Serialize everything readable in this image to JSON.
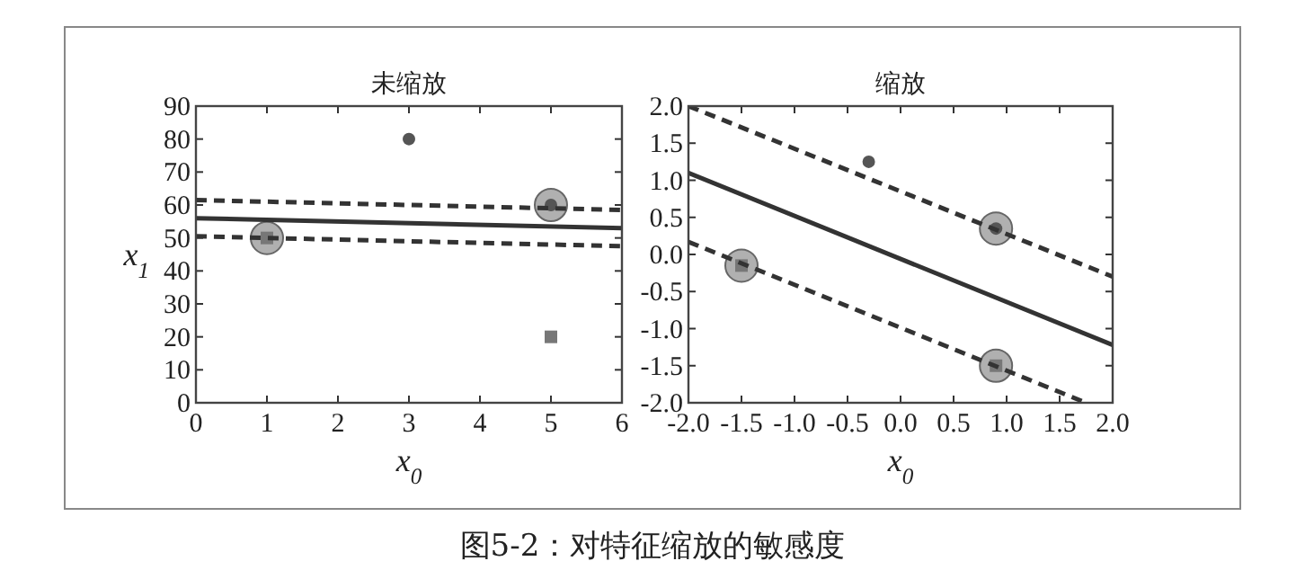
{
  "chart_data": [
    {
      "type": "scatter",
      "title": "未缩放",
      "xlabel": "x$_{0}$",
      "ylabel": "x$_{1}$",
      "xlim": [
        0,
        6
      ],
      "ylim": [
        0,
        90
      ],
      "xticks": [
        0,
        1,
        2,
        3,
        4,
        5,
        6
      ],
      "yticks": [
        0,
        10,
        20,
        30,
        40,
        50,
        60,
        70,
        80,
        90
      ],
      "annotations": [
        "图5-2：对特征缩放的敏感度"
      ],
      "series": [
        {
          "type": "bubble",
          "color": "#b0b0b0",
          "x": [
            1,
            5
          ],
          "values": [
            50,
            60
          ],
          "sizes": [
            1,
            1
          ]
        },
        {
          "marker": "circle",
          "color": "#555555",
          "x": [
            3,
            5
          ],
          "values": [
            80,
            60
          ]
        },
        {
          "marker": "square",
          "color": "#777777",
          "x": [
            1,
            5
          ],
          "values": [
            50,
            20
          ]
        },
        {
          "type": "line",
          "line_style": "solid",
          "color": "#333333",
          "x": [
            0,
            6
          ],
          "values": [
            56,
            53
          ]
        },
        {
          "type": "line",
          "line_style": "dashed",
          "color": "#333333",
          "x": [
            0,
            6
          ],
          "values": [
            61.5,
            58.5
          ]
        },
        {
          "type": "line",
          "line_style": "dashed",
          "color": "#333333",
          "x": [
            0,
            6
          ],
          "values": [
            50.5,
            47.5
          ]
        }
      ]
    },
    {
      "type": "scatter",
      "title": "缩放",
      "xlabel": "x$_{0}$",
      "xlim": [
        -2,
        2
      ],
      "ylim": [
        -2,
        2
      ],
      "xticks": [
        {
          "value": -2,
          "label": "-2.0"
        },
        {
          "value": -1.5,
          "label": "-1.5"
        },
        {
          "value": -1,
          "label": "-1.0"
        },
        {
          "value": -0.5,
          "label": "-0.5"
        },
        {
          "value": 0,
          "label": "0.0"
        },
        {
          "value": 0.5,
          "label": "0.5"
        },
        {
          "value": 1,
          "label": "1.0"
        },
        {
          "value": 1.5,
          "label": "1.5"
        },
        {
          "value": 2,
          "label": "2.0"
        }
      ],
      "yticks": [
        {
          "value": -2,
          "label": "-2.0"
        },
        {
          "value": -1.5,
          "label": "-1.5"
        },
        {
          "value": -1,
          "label": "-1.0"
        },
        {
          "value": -0.5,
          "label": "-0.5"
        },
        {
          "value": 0,
          "label": "0.0"
        },
        {
          "value": 0.5,
          "label": "0.5"
        },
        {
          "value": 1,
          "label": "1.0"
        },
        {
          "value": 1.5,
          "label": "1.5"
        },
        {
          "value": 2,
          "label": "2.0"
        }
      ],
      "series": [
        {
          "type": "bubble",
          "color": "#b0b0b0",
          "x": [
            -1.5,
            0.9,
            0.9
          ],
          "values": [
            -0.15,
            0.35,
            -1.5
          ],
          "sizes": [
            1,
            1,
            1
          ]
        },
        {
          "marker": "circle",
          "color": "#555555",
          "x": [
            -0.3,
            0.9
          ],
          "values": [
            1.25,
            0.35
          ]
        },
        {
          "marker": "square",
          "color": "#777777",
          "x": [
            -1.5,
            0.9
          ],
          "values": [
            -0.15,
            -1.5
          ]
        },
        {
          "type": "line",
          "line_style": "solid",
          "color": "#333333",
          "x": [
            -2,
            2
          ],
          "values": [
            1.1,
            -1.22
          ]
        },
        {
          "type": "line",
          "line_style": "dashed",
          "color": "#333333",
          "x": [
            -2,
            2
          ],
          "values": [
            2.0,
            -0.3
          ]
        },
        {
          "type": "line",
          "line_style": "dashed",
          "color": "#333333",
          "x": [
            -2,
            1.75
          ],
          "values": [
            0.17,
            -2.0
          ]
        }
      ]
    }
  ]
}
